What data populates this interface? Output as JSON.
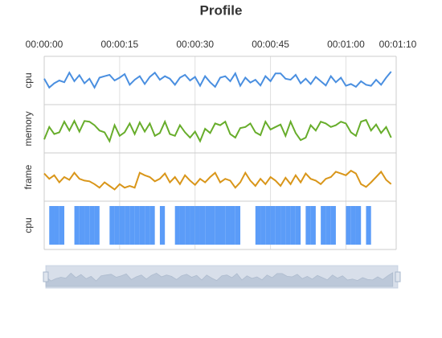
{
  "chart_data": {
    "type": "profile",
    "title": "Profile",
    "x": [
      0,
      1,
      2,
      3,
      4,
      5,
      6,
      7,
      8,
      9,
      10,
      11,
      12,
      13,
      14,
      15,
      16,
      17,
      18,
      19,
      20,
      21,
      22,
      23,
      24,
      25,
      26,
      27,
      28,
      29,
      30,
      31,
      32,
      33,
      34,
      35,
      36,
      37,
      38,
      39,
      40,
      41,
      42,
      43,
      44,
      45,
      46,
      47,
      48,
      49,
      50,
      51,
      52,
      53,
      54,
      55,
      56,
      57,
      58,
      59,
      60,
      61,
      62,
      63,
      64,
      65,
      66,
      67,
      68,
      69
    ],
    "xlim": [
      0,
      70
    ],
    "xticks": [
      {
        "value": 0,
        "label": "00:00:00"
      },
      {
        "value": 15,
        "label": "00:00:15"
      },
      {
        "value": 30,
        "label": "00:00:30"
      },
      {
        "value": 45,
        "label": "00:00:45"
      },
      {
        "value": 60,
        "label": "00:01:00"
      },
      {
        "value": 70,
        "label": "00:01:10"
      }
    ],
    "grid": true,
    "series": [
      {
        "name": "cpu",
        "kind": "line",
        "color": "#4a8fe0",
        "ylim": [
          0,
          100
        ],
        "values": [
          55,
          30,
          42,
          50,
          45,
          72,
          48,
          65,
          42,
          55,
          30,
          58,
          62,
          66,
          50,
          58,
          68,
          38,
          52,
          62,
          40,
          60,
          72,
          52,
          62,
          55,
          38,
          58,
          66,
          50,
          60,
          35,
          62,
          45,
          32,
          58,
          62,
          48,
          70,
          35,
          58,
          44,
          52,
          36,
          62,
          48,
          70,
          70,
          55,
          52,
          66,
          42,
          55,
          40,
          60,
          48,
          36,
          62,
          45,
          58,
          35,
          40,
          32,
          48,
          38,
          35,
          52,
          38,
          58,
          75
        ]
      },
      {
        "name": "memory",
        "kind": "line",
        "color": "#67ad2b",
        "ylim": [
          0,
          100
        ],
        "values": [
          20,
          55,
          35,
          40,
          70,
          45,
          72,
          42,
          72,
          70,
          60,
          45,
          40,
          15,
          60,
          30,
          40,
          65,
          35,
          68,
          42,
          65,
          30,
          38,
          70,
          35,
          30,
          60,
          40,
          25,
          42,
          15,
          50,
          38,
          65,
          60,
          70,
          35,
          25,
          52,
          55,
          65,
          40,
          32,
          70,
          48,
          55,
          62,
          30,
          70,
          38,
          18,
          25,
          60,
          45,
          70,
          65,
          55,
          60,
          70,
          65,
          40,
          30,
          70,
          75,
          45,
          62,
          38,
          55,
          25
        ]
      },
      {
        "name": "frame",
        "kind": "line",
        "color": "#d9961a",
        "ylim": [
          0,
          100
        ],
        "values": [
          60,
          45,
          55,
          35,
          50,
          42,
          62,
          45,
          40,
          38,
          30,
          20,
          35,
          25,
          15,
          30,
          20,
          25,
          20,
          62,
          55,
          50,
          38,
          45,
          60,
          35,
          50,
          30,
          55,
          40,
          28,
          45,
          35,
          50,
          62,
          35,
          45,
          40,
          20,
          35,
          62,
          40,
          25,
          45,
          30,
          50,
          40,
          25,
          48,
          30,
          55,
          35,
          60,
          45,
          40,
          30,
          45,
          50,
          65,
          60,
          55,
          68,
          60,
          30,
          22,
          35,
          50,
          65,
          42,
          30
        ]
      },
      {
        "name": "cpu",
        "kind": "bar",
        "color": "#5b9cf8",
        "ylim": [
          0,
          1
        ],
        "values": [
          0,
          1,
          1,
          1,
          0,
          0,
          1,
          1,
          1,
          1,
          1,
          0,
          0,
          1,
          1,
          1,
          1,
          1,
          1,
          1,
          1,
          1,
          0,
          1,
          0,
          0,
          1,
          1,
          1,
          1,
          1,
          1,
          1,
          1,
          1,
          1,
          1,
          1,
          1,
          0,
          0,
          0,
          1,
          1,
          1,
          1,
          1,
          1,
          1,
          1,
          1,
          0,
          1,
          1,
          0,
          1,
          1,
          1,
          0,
          0,
          1,
          1,
          1,
          0,
          1,
          0,
          0,
          0,
          0,
          0
        ]
      }
    ]
  }
}
